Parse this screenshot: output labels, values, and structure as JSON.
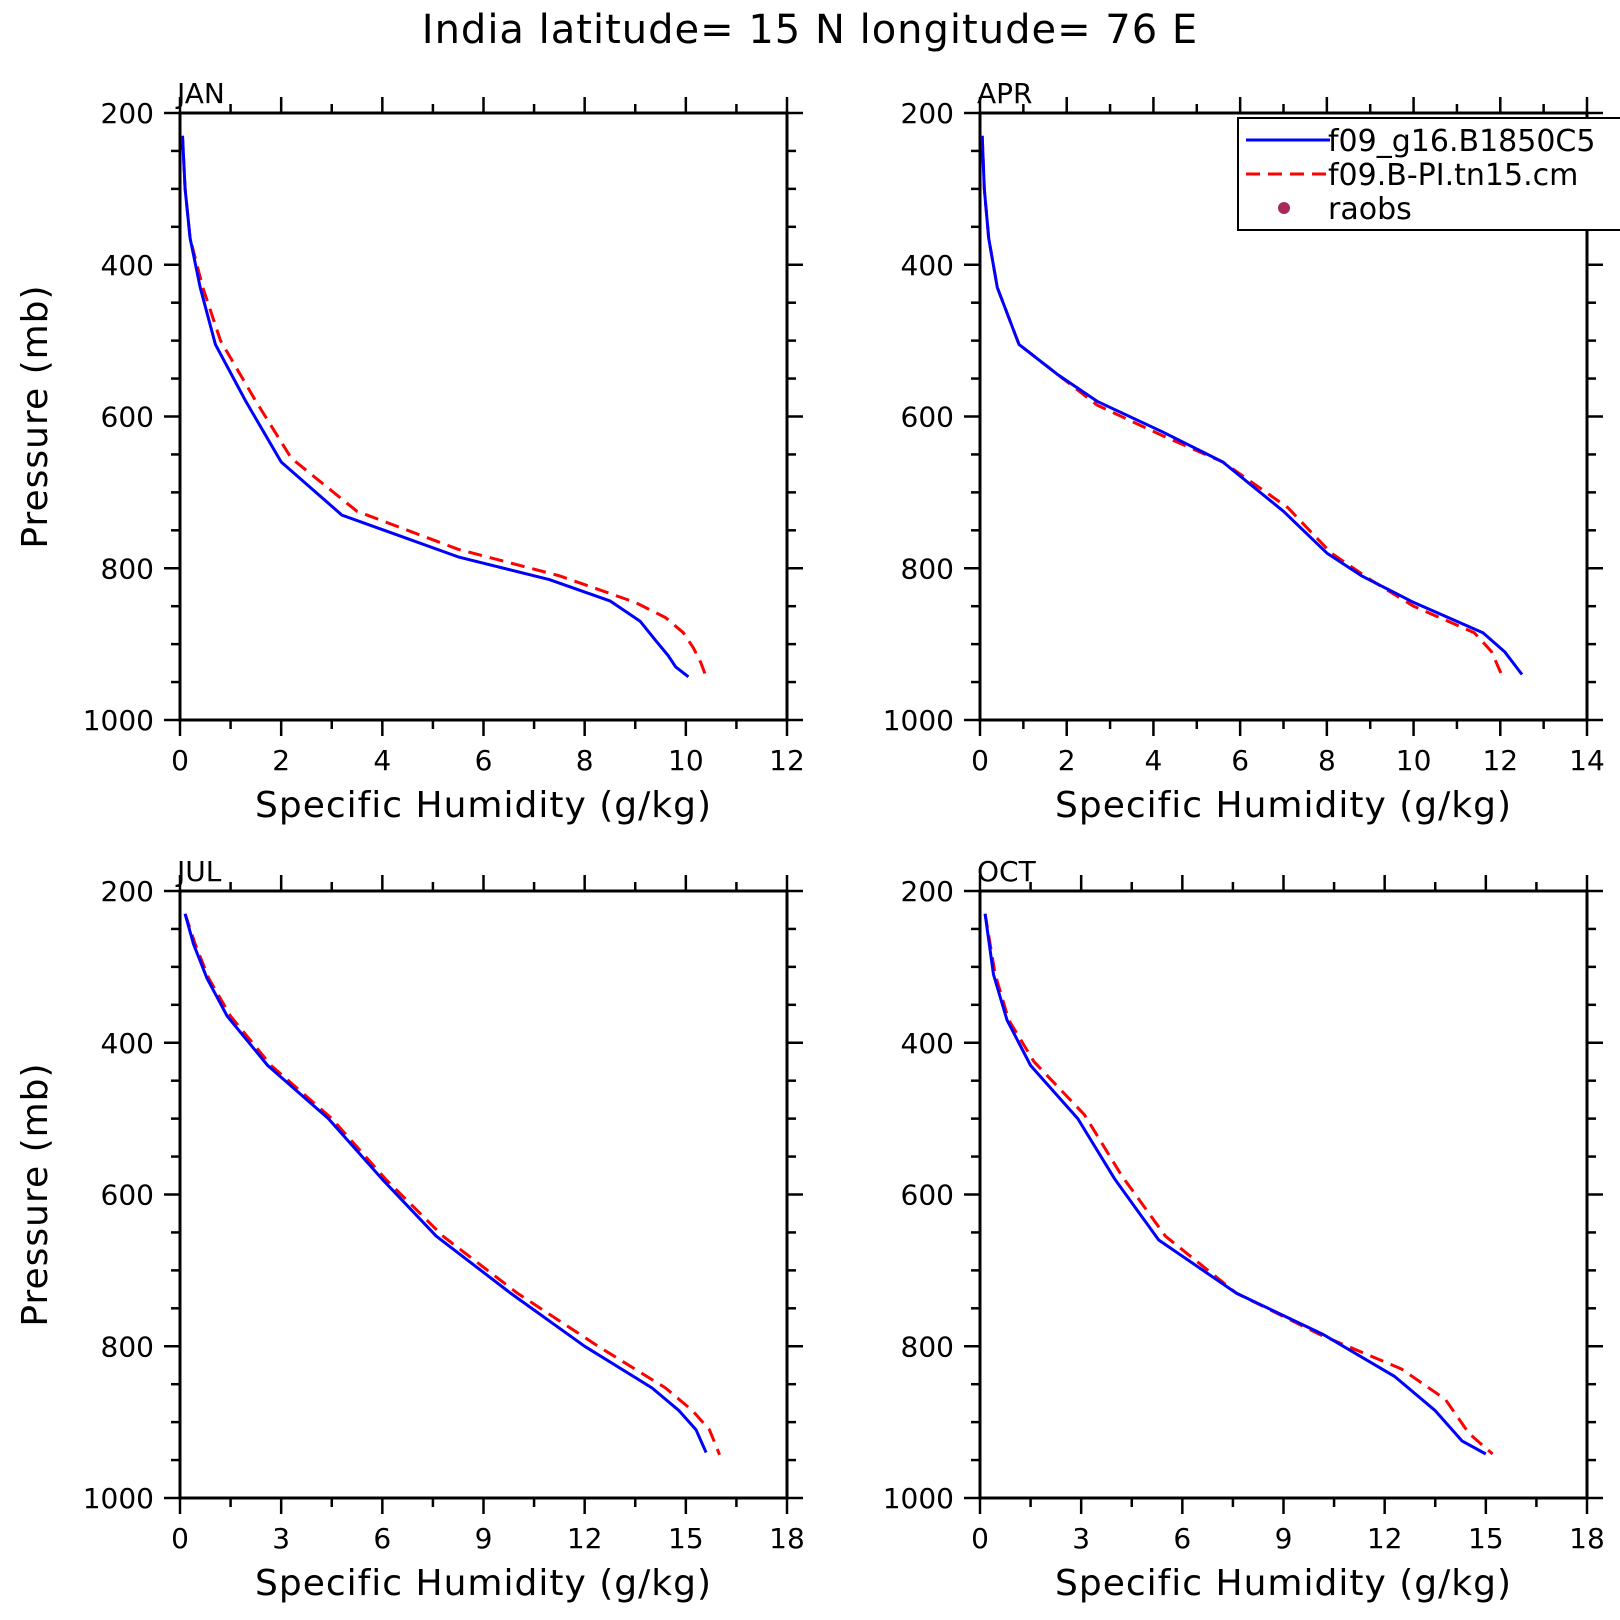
{
  "title": "India  latitude= 15 N longitude= 76 E",
  "legend": {
    "entries": [
      {
        "label": "f09_g16.B1850C5",
        "color": "#0000ff",
        "style": "solid"
      },
      {
        "label": "f09.B-PI.tn15.cm",
        "color": "#ff0000",
        "style": "dashed"
      },
      {
        "label": "raobs",
        "color": "#a52a5a",
        "style": "marker"
      }
    ]
  },
  "chart_data": [
    {
      "type": "line",
      "panel": "JAN",
      "xlabel": "Specific Humidity (g/kg)",
      "ylabel": "Pressure (mb)",
      "xlim": [
        0,
        12
      ],
      "ylim": [
        1000,
        200
      ],
      "xticks": [
        0,
        2,
        4,
        6,
        8,
        10,
        12
      ],
      "yticks": [
        200,
        400,
        600,
        800,
        1000
      ],
      "series": [
        {
          "name": "f09_g16.B1850C5",
          "color": "#0000ff",
          "x": [
            0.05,
            0.1,
            0.2,
            0.4,
            0.7,
            1.3,
            2.0,
            3.2,
            5.5,
            7.3,
            8.5,
            9.1,
            9.4,
            9.65,
            9.8,
            10.05
          ],
          "y": [
            230,
            300,
            365,
            430,
            505,
            580,
            660,
            730,
            785,
            815,
            843,
            870,
            895,
            915,
            930,
            943
          ]
        },
        {
          "name": "f09.B-PI.tn15.cm",
          "color": "#ff0000",
          "x": [
            0.05,
            0.1,
            0.2,
            0.45,
            0.8,
            1.5,
            2.2,
            3.5,
            5.5,
            7.5,
            9.0,
            9.6,
            9.95,
            10.15,
            10.3,
            10.4
          ],
          "y": [
            230,
            300,
            365,
            430,
            500,
            580,
            655,
            725,
            775,
            810,
            845,
            865,
            885,
            905,
            925,
            943
          ]
        }
      ]
    },
    {
      "type": "line",
      "panel": "APR",
      "xlabel": "Specific Humidity (g/kg)",
      "ylabel": "",
      "xlim": [
        0,
        14
      ],
      "ylim": [
        1000,
        200
      ],
      "xticks": [
        0,
        2,
        4,
        6,
        8,
        10,
        12,
        14
      ],
      "yticks": [
        200,
        400,
        600,
        800,
        1000
      ],
      "series": [
        {
          "name": "f09_g16.B1850C5",
          "color": "#0000ff",
          "x": [
            0.05,
            0.1,
            0.2,
            0.4,
            0.9,
            1.8,
            2.7,
            4.2,
            5.6,
            7.0,
            8.0,
            8.8,
            10.0,
            11.6,
            12.1,
            12.5
          ],
          "y": [
            230,
            300,
            365,
            430,
            505,
            545,
            580,
            620,
            660,
            725,
            780,
            810,
            845,
            885,
            910,
            940
          ]
        },
        {
          "name": "f09.B-PI.tn15.cm",
          "color": "#ff0000",
          "x": [
            0.05,
            0.1,
            0.2,
            0.4,
            0.9,
            1.8,
            2.7,
            4.2,
            5.6,
            7.1,
            8.1,
            9.0,
            10.0,
            11.4,
            11.8,
            12.05
          ],
          "y": [
            230,
            300,
            365,
            430,
            505,
            545,
            585,
            625,
            660,
            720,
            780,
            815,
            850,
            885,
            910,
            943
          ]
        }
      ]
    },
    {
      "type": "line",
      "panel": "JUL",
      "xlabel": "Specific Humidity (g/kg)",
      "ylabel": "Pressure (mb)",
      "xlim": [
        0,
        18
      ],
      "ylim": [
        1000,
        200
      ],
      "xticks": [
        0,
        3,
        6,
        9,
        12,
        15,
        18
      ],
      "yticks": [
        200,
        400,
        600,
        800,
        1000
      ],
      "series": [
        {
          "name": "f09_g16.B1850C5",
          "color": "#0000ff",
          "x": [
            0.15,
            0.4,
            0.8,
            1.4,
            2.6,
            4.4,
            6.0,
            7.6,
            9.8,
            12.0,
            14.0,
            14.8,
            15.3,
            15.6
          ],
          "y": [
            230,
            270,
            315,
            365,
            430,
            500,
            580,
            655,
            730,
            800,
            855,
            885,
            910,
            940
          ]
        },
        {
          "name": "f09.B-PI.tn15.cm",
          "color": "#ff0000",
          "x": [
            0.15,
            0.45,
            0.85,
            1.5,
            2.7,
            4.5,
            6.1,
            7.8,
            10.0,
            12.4,
            14.4,
            15.2,
            15.7,
            16.0
          ],
          "y": [
            230,
            270,
            315,
            365,
            430,
            500,
            580,
            655,
            730,
            800,
            855,
            885,
            910,
            943
          ]
        }
      ]
    },
    {
      "type": "line",
      "panel": "OCT",
      "xlabel": "Specific Humidity (g/kg)",
      "ylabel": "",
      "xlim": [
        0,
        18
      ],
      "ylim": [
        1000,
        200
      ],
      "xticks": [
        0,
        3,
        6,
        9,
        12,
        15,
        18
      ],
      "yticks": [
        200,
        400,
        600,
        800,
        1000
      ],
      "series": [
        {
          "name": "f09_g16.B1850C5",
          "color": "#0000ff",
          "x": [
            0.15,
            0.4,
            0.8,
            1.5,
            2.9,
            4.0,
            5.3,
            7.6,
            10.2,
            12.3,
            13.5,
            14.3,
            15.0
          ],
          "y": [
            230,
            310,
            370,
            430,
            500,
            580,
            660,
            730,
            785,
            840,
            885,
            925,
            942
          ]
        },
        {
          "name": "f09.B-PI.tn15.cm",
          "color": "#ff0000",
          "x": [
            0.15,
            0.45,
            0.85,
            1.6,
            3.1,
            4.2,
            5.5,
            7.6,
            10.1,
            12.5,
            13.8,
            14.5,
            15.2
          ],
          "y": [
            230,
            310,
            370,
            425,
            495,
            575,
            655,
            730,
            785,
            830,
            870,
            915,
            942
          ]
        }
      ]
    }
  ]
}
